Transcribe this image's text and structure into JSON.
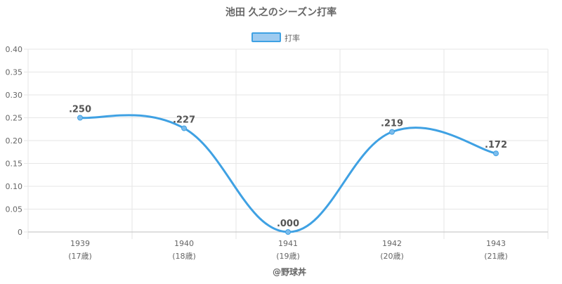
{
  "chart_data": {
    "type": "line",
    "title": "池田 久之のシーズン打率",
    "legend": {
      "label": "打率",
      "position": "top",
      "fill_color": "#9ecbf0",
      "border_color": "#3fa1e3"
    },
    "categories": [
      "1939",
      "1940",
      "1941",
      "1942",
      "1943"
    ],
    "sub_categories": [
      "(17歳)",
      "(18歳)",
      "(19歳)",
      "(20歳)",
      "(21歳)"
    ],
    "series": [
      {
        "name": "打率",
        "values": [
          0.25,
          0.227,
          0.0,
          0.219,
          0.172
        ],
        "labels": [
          ".250",
          ".227",
          ".000",
          ".219",
          ".172"
        ],
        "color": "#3fa1e3"
      }
    ],
    "yticks": [
      "0",
      "0.05",
      "0.10",
      "0.15",
      "0.20",
      "0.25",
      "0.30",
      "0.35",
      "0.40"
    ],
    "ylim": [
      0,
      0.4
    ],
    "grid": true,
    "curve": "smooth"
  },
  "footer": {
    "credit": "@野球丼"
  }
}
